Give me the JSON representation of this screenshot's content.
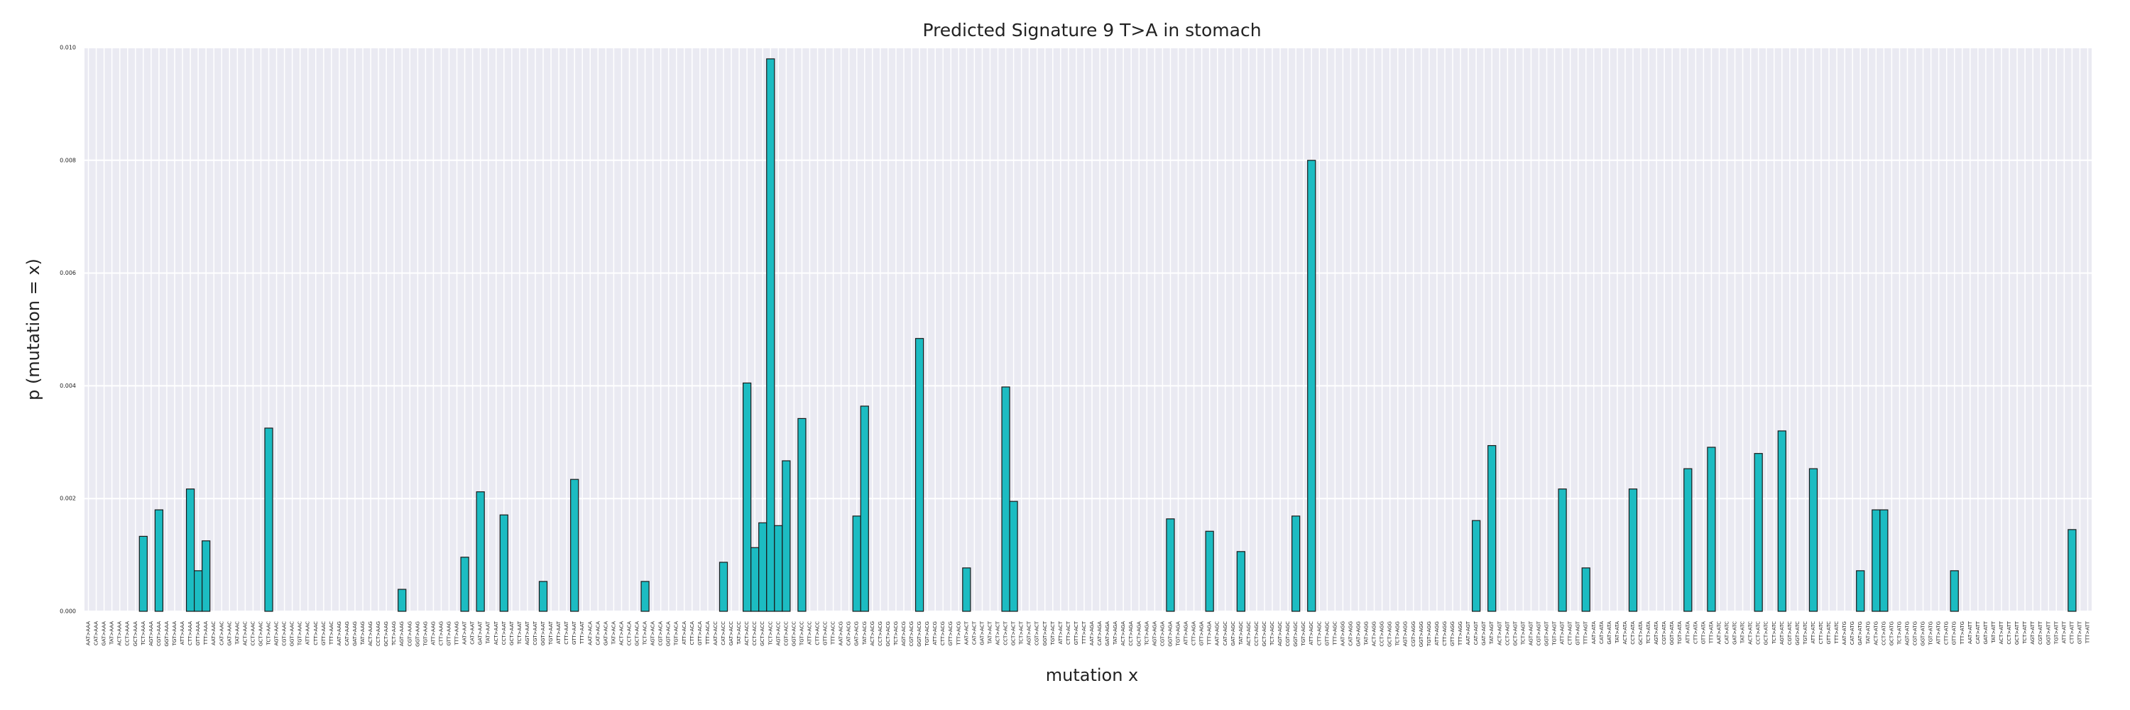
{
  "chart_data": {
    "type": "bar",
    "title": "Predicted Signature 9 T>A in stomach",
    "xlabel": "mutation x",
    "ylabel": "p (mutation = x)",
    "color": "#1cbcc2",
    "edgecolor": "#1a1a1a",
    "grid": true,
    "ylim": [
      0,
      0.01
    ],
    "yticks": [
      {
        "value": 0,
        "label": "0.000"
      },
      {
        "value": 0.002,
        "label": "0.002"
      },
      {
        "value": 0.004,
        "label": "0.004"
      },
      {
        "value": 0.006,
        "label": "0.006"
      },
      {
        "value": 0.008,
        "label": "0.008"
      },
      {
        "value": 0.01,
        "label": "0.010"
      }
    ],
    "categories": [
      "AAT>AAA",
      "CAT>AAA",
      "GAT>AAA",
      "TAT>AAA",
      "ACT>AAA",
      "CCT>AAA",
      "GCT>AAA",
      "TCT>AAA",
      "AGT>AAA",
      "CGT>AAA",
      "GGT>AAA",
      "TGT>AAA",
      "ATT>AAA",
      "CTT>AAA",
      "GTT>AAA",
      "TTT>AAA",
      "AAT>AAC",
      "CAT>AAC",
      "GAT>AAC",
      "TAT>AAC",
      "ACT>AAC",
      "CCT>AAC",
      "GCT>AAC",
      "TCT>AAC",
      "AGT>AAC",
      "CGT>AAC",
      "GGT>AAC",
      "TGT>AAC",
      "ATT>AAC",
      "CTT>AAC",
      "GTT>AAC",
      "TTT>AAC",
      "AAT>AAG",
      "CAT>AAG",
      "GAT>AAG",
      "TAT>AAG",
      "ACT>AAG",
      "CCT>AAG",
      "GCT>AAG",
      "TCT>AAG",
      "AGT>AAG",
      "CGT>AAG",
      "GGT>AAG",
      "TGT>AAG",
      "ATT>AAG",
      "CTT>AAG",
      "GTT>AAG",
      "TTT>AAG",
      "AAT>AAT",
      "CAT>AAT",
      "GAT>AAT",
      "TAT>AAT",
      "ACT>AAT",
      "CCT>AAT",
      "GCT>AAT",
      "TCT>AAT",
      "AGT>AAT",
      "CGT>AAT",
      "GGT>AAT",
      "TGT>AAT",
      "ATT>AAT",
      "CTT>AAT",
      "GTT>AAT",
      "TTT>AAT",
      "AAT>ACA",
      "CAT>ACA",
      "GAT>ACA",
      "TAT>ACA",
      "ACT>ACA",
      "CCT>ACA",
      "GCT>ACA",
      "TCT>ACA",
      "AGT>ACA",
      "CGT>ACA",
      "GGT>ACA",
      "TGT>ACA",
      "ATT>ACA",
      "CTT>ACA",
      "GTT>ACA",
      "TTT>ACA",
      "AAT>ACC",
      "CAT>ACC",
      "GAT>ACC",
      "TAT>ACC",
      "ACT>ACC",
      "CCT>ACC",
      "GCT>ACC",
      "TCT>ACC",
      "AGT>ACC",
      "CGT>ACC",
      "GGT>ACC",
      "TGT>ACC",
      "ATT>ACC",
      "CTT>ACC",
      "GTT>ACC",
      "TTT>ACC",
      "AAT>ACG",
      "CAT>ACG",
      "GAT>ACG",
      "TAT>ACG",
      "ACT>ACG",
      "CCT>ACG",
      "GCT>ACG",
      "TCT>ACG",
      "AGT>ACG",
      "CGT>ACG",
      "GGT>ACG",
      "TGT>ACG",
      "ATT>ACG",
      "CTT>ACG",
      "GTT>ACG",
      "TTT>ACG",
      "AAT>ACT",
      "CAT>ACT",
      "GAT>ACT",
      "TAT>ACT",
      "ACT>ACT",
      "CCT>ACT",
      "GCT>ACT",
      "TCT>ACT",
      "AGT>ACT",
      "CGT>ACT",
      "GGT>ACT",
      "TGT>ACT",
      "ATT>ACT",
      "CTT>ACT",
      "GTT>ACT",
      "TTT>ACT",
      "AAT>AGA",
      "CAT>AGA",
      "GAT>AGA",
      "TAT>AGA",
      "ACT>AGA",
      "CCT>AGA",
      "GCT>AGA",
      "TCT>AGA",
      "AGT>AGA",
      "CGT>AGA",
      "GGT>AGA",
      "TGT>AGA",
      "ATT>AGA",
      "CTT>AGA",
      "GTT>AGA",
      "TTT>AGA",
      "AAT>AGC",
      "CAT>AGC",
      "GAT>AGC",
      "TAT>AGC",
      "ACT>AGC",
      "CCT>AGC",
      "GCT>AGC",
      "TCT>AGC",
      "AGT>AGC",
      "CGT>AGC",
      "GGT>AGC",
      "TGT>AGC",
      "ATT>AGC",
      "CTT>AGC",
      "GTT>AGC",
      "TTT>AGC",
      "AAT>AGG",
      "CAT>AGG",
      "GAT>AGG",
      "TAT>AGG",
      "ACT>AGG",
      "CCT>AGG",
      "GCT>AGG",
      "TCT>AGG",
      "AGT>AGG",
      "CGT>AGG",
      "GGT>AGG",
      "TGT>AGG",
      "ATT>AGG",
      "CTT>AGG",
      "GTT>AGG",
      "TTT>AGG",
      "AAT>AGT",
      "CAT>AGT",
      "GAT>AGT",
      "TAT>AGT",
      "ACT>AGT",
      "CCT>AGT",
      "GCT>AGT",
      "TCT>AGT",
      "AGT>AGT",
      "CGT>AGT",
      "GGT>AGT",
      "TGT>AGT",
      "ATT>AGT",
      "CTT>AGT",
      "GTT>AGT",
      "TTT>AGT",
      "AAT>ATA",
      "CAT>ATA",
      "GAT>ATA",
      "TAT>ATA",
      "ACT>ATA",
      "CCT>ATA",
      "GCT>ATA",
      "TCT>ATA",
      "AGT>ATA",
      "CGT>ATA",
      "GGT>ATA",
      "TGT>ATA",
      "ATT>ATA",
      "CTT>ATA",
      "GTT>ATA",
      "TTT>ATA",
      "AAT>ATC",
      "CAT>ATC",
      "GAT>ATC",
      "TAT>ATC",
      "ACT>ATC",
      "CCT>ATC",
      "GCT>ATC",
      "TCT>ATC",
      "AGT>ATC",
      "CGT>ATC",
      "GGT>ATC",
      "TGT>ATC",
      "ATT>ATC",
      "CTT>ATC",
      "GTT>ATC",
      "TTT>ATC",
      "AAT>ATG",
      "CAT>ATG",
      "GAT>ATG",
      "TAT>ATG",
      "ACT>ATG",
      "CCT>ATG",
      "GCT>ATG",
      "TCT>ATG",
      "AGT>ATG",
      "CGT>ATG",
      "GGT>ATG",
      "TGT>ATG",
      "ATT>ATG",
      "CTT>ATG",
      "GTT>ATG",
      "TTT>ATG",
      "AAT>ATT",
      "CAT>ATT",
      "GAT>ATT",
      "TAT>ATT",
      "ACT>ATT",
      "CCT>ATT",
      "GCT>ATT",
      "TCT>ATT",
      "AGT>ATT",
      "CGT>ATT",
      "GGT>ATT",
      "TGT>ATT",
      "ATT>ATT",
      "CTT>ATT",
      "GTT>ATT",
      "TTT>ATT"
    ],
    "values": [
      0,
      0,
      0,
      0,
      0,
      0,
      0,
      0.00133,
      0,
      0.0018,
      0,
      0,
      0,
      0.00217,
      0.00072,
      0.00125,
      0,
      0,
      0,
      0,
      0,
      0,
      0,
      0.00325,
      0,
      0,
      0,
      0,
      0,
      0,
      0,
      0,
      0,
      0,
      0,
      0,
      0,
      0,
      0,
      0,
      0.00039,
      0,
      0,
      0,
      0,
      0,
      0,
      0,
      0.00096,
      0,
      0.00212,
      0,
      0,
      0.00171,
      0,
      0,
      0,
      0,
      0.00053,
      0,
      0,
      0,
      0.00234,
      0,
      0,
      0,
      0,
      0,
      0,
      0,
      0,
      0.00053,
      0,
      0,
      0,
      0,
      0,
      0,
      0,
      0,
      0,
      0.00087,
      0,
      0,
      0.00405,
      0.00113,
      0.00157,
      0.0098,
      0.00152,
      0.00267,
      0,
      0.00342,
      0,
      0,
      0,
      0,
      0,
      0,
      0.00169,
      0.00364,
      0,
      0,
      0,
      0,
      0,
      0,
      0.00484,
      0,
      0,
      0,
      0,
      0,
      0.00077,
      0,
      0,
      0,
      0,
      0.00398,
      0.00195,
      0,
      0,
      0,
      0,
      0,
      0,
      0,
      0,
      0,
      0,
      0,
      0,
      0,
      0,
      0,
      0,
      0,
      0,
      0,
      0.00164,
      0,
      0,
      0,
      0,
      0.00142,
      0,
      0,
      0,
      0.00106,
      0,
      0,
      0,
      0,
      0,
      0,
      0.00169,
      0,
      0.008,
      0,
      0,
      0,
      0,
      0,
      0,
      0,
      0,
      0,
      0,
      0,
      0,
      0,
      0,
      0,
      0,
      0,
      0,
      0,
      0,
      0.00161,
      0,
      0.00294,
      0,
      0,
      0,
      0,
      0,
      0,
      0,
      0,
      0.00217,
      0,
      0,
      0.00077,
      0,
      0,
      0,
      0,
      0,
      0.00217,
      0,
      0,
      0,
      0,
      0,
      0,
      0.00253,
      0,
      0,
      0.00291,
      0,
      0,
      0,
      0,
      0,
      0.0028,
      0,
      0,
      0.0032,
      0,
      0,
      0,
      0.00253,
      0,
      0,
      0,
      0,
      0,
      0.00072,
      0,
      0.0018,
      0.0018,
      0,
      0,
      0,
      0,
      0,
      0,
      0,
      0,
      0.00072,
      0,
      0,
      0,
      0,
      0,
      0,
      0,
      0,
      0,
      0,
      0,
      0,
      0,
      0,
      0.00145,
      0,
      0
    ]
  }
}
